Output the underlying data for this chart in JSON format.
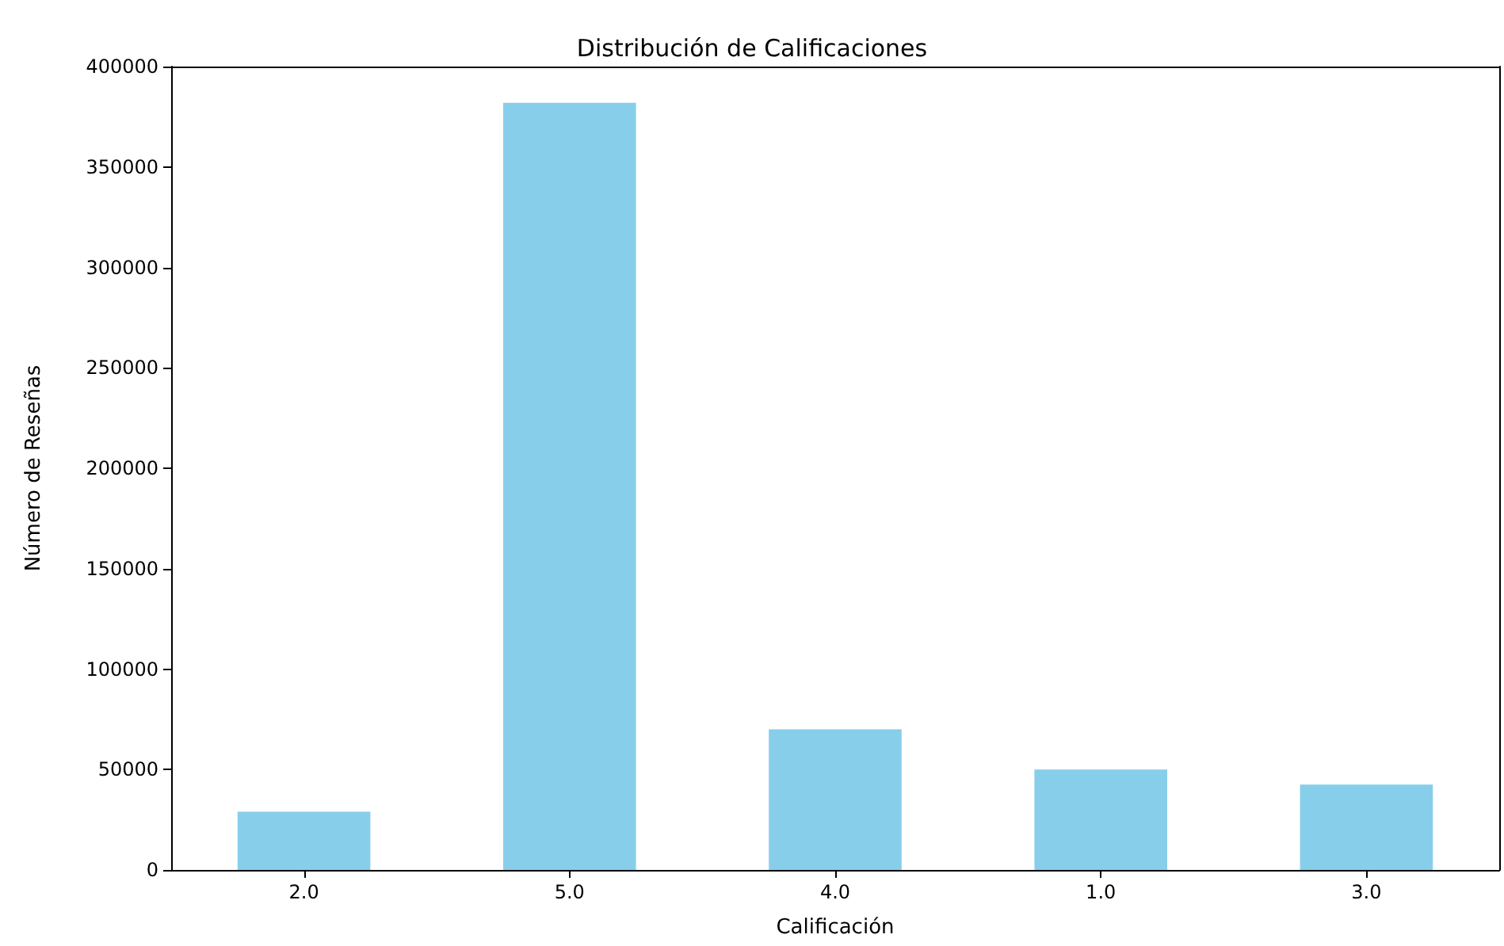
{
  "chart_data": {
    "type": "bar",
    "title": "Distribución de Calificaciones",
    "xlabel": "Calificación",
    "ylabel": "Número de Reseñas",
    "categories": [
      "2.0",
      "5.0",
      "4.0",
      "1.0",
      "3.0"
    ],
    "values": [
      29000,
      382000,
      70000,
      50000,
      42500
    ],
    "color": "#87ceeb",
    "ylim": [
      0,
      400000
    ],
    "yticks": [
      0,
      50000,
      100000,
      150000,
      200000,
      250000,
      300000,
      350000,
      400000
    ],
    "grid": false
  }
}
